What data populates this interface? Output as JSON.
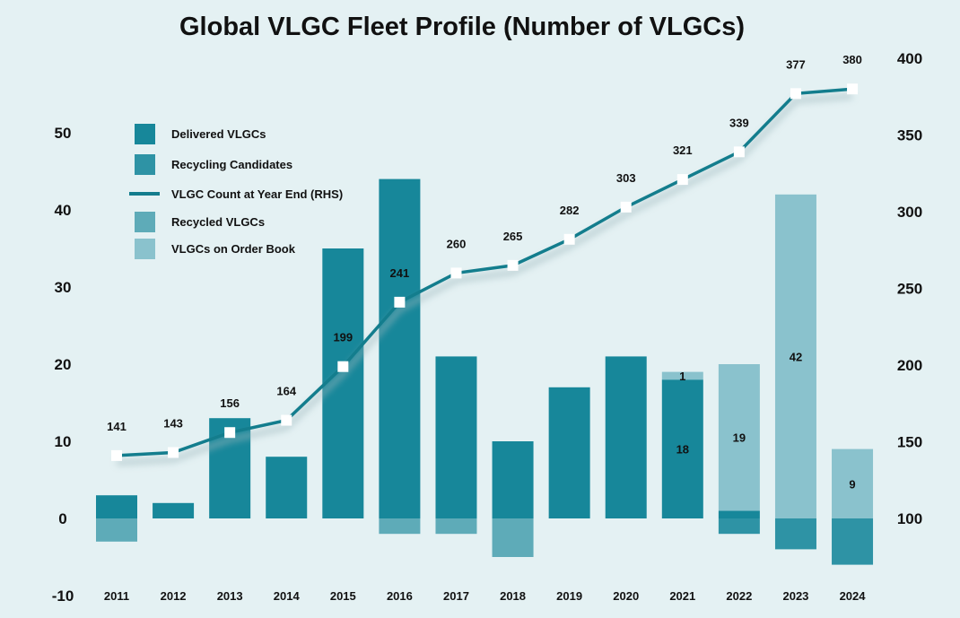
{
  "chart_data": {
    "type": "bar",
    "title": "Global VLGC Fleet Profile (Number of VLGCs)",
    "categories": [
      "2011",
      "2012",
      "2013",
      "2014",
      "2015",
      "2016",
      "2017",
      "2018",
      "2019",
      "2020",
      "2021",
      "2022",
      "2023",
      "2024"
    ],
    "y_left": {
      "range": [
        -10,
        50
      ],
      "ticks": [
        -10,
        0,
        10,
        20,
        30,
        40,
        50
      ]
    },
    "y_right": {
      "range": [
        100,
        400
      ],
      "ticks": [
        100,
        150,
        200,
        250,
        300,
        350,
        400
      ]
    },
    "legend_placement": "top-left",
    "grid": false,
    "series": [
      {
        "name": "Delivered VLGCs",
        "type": "bar",
        "color": "#17879a",
        "values": [
          3,
          2,
          13,
          8,
          35,
          44,
          21,
          10,
          17,
          21,
          18,
          1,
          0,
          0
        ]
      },
      {
        "name": "Recycling Candidates",
        "type": "bar",
        "color": "#2e93a5",
        "values": [
          0,
          0,
          0,
          0,
          0,
          0,
          0,
          0,
          0,
          0,
          0,
          -2,
          -4,
          -6
        ]
      },
      {
        "name": "VLGC Count at Year End (RHS)",
        "type": "line",
        "axis": "right",
        "color": "#137d8d",
        "values": [
          141,
          143,
          156,
          164,
          199,
          241,
          260,
          265,
          282,
          303,
          321,
          339,
          377,
          380
        ]
      },
      {
        "name": "Recycled VLGCs",
        "type": "bar",
        "color": "#5eabb8",
        "values": [
          -3,
          0,
          0,
          0,
          0,
          -2,
          -2,
          -5,
          0,
          0,
          0,
          0,
          0,
          0
        ]
      },
      {
        "name": "VLGCs on Order Book",
        "type": "bar",
        "color": "#8ac2cd",
        "values": [
          0,
          0,
          0,
          0,
          0,
          0,
          0,
          0,
          0,
          0,
          1,
          19,
          42,
          9
        ]
      }
    ],
    "bar_labels": [
      {
        "year": "2021",
        "series": "Delivered VLGCs",
        "text": "18",
        "color": "#ffffff"
      },
      {
        "year": "2021",
        "series": "VLGCs on Order Book",
        "text": "1",
        "color": "#111111"
      },
      {
        "year": "2022",
        "series": "VLGCs on Order Book",
        "text": "19",
        "color": "#111111"
      },
      {
        "year": "2023",
        "series": "VLGCs on Order Book",
        "text": "42",
        "color": "#111111"
      },
      {
        "year": "2024",
        "series": "VLGCs on Order Book",
        "text": "9",
        "color": "#111111"
      }
    ]
  }
}
